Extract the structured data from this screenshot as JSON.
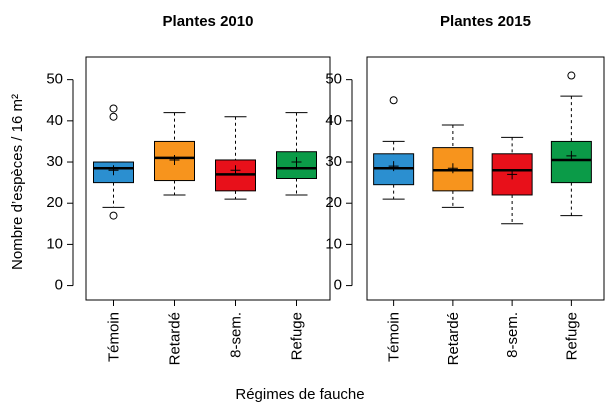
{
  "xlabel": "Régimes de fauche",
  "chart_data": [
    {
      "type": "box",
      "title": "Plantes 2010",
      "ylabel": "Nombre d’espèces / 16 m²",
      "categories": [
        "Témoin",
        "Retardé",
        "8-sem.",
        "Refuge"
      ],
      "colors": [
        "#2b8fd0",
        "#f7941d",
        "#e8101a",
        "#0b9b48"
      ],
      "ylim": [
        -3.5,
        55.5
      ],
      "yticks": [
        0,
        10,
        20,
        30,
        40,
        50
      ],
      "boxes": [
        {
          "low": 19,
          "q1": 25,
          "median": 28.5,
          "q3": 30,
          "high": 30,
          "mean": 28,
          "outliers": [
            43,
            41,
            17
          ]
        },
        {
          "low": 22,
          "q1": 25.5,
          "median": 31,
          "q3": 35,
          "high": 42,
          "mean": 30.5
        },
        {
          "low": 21,
          "q1": 23,
          "median": 27,
          "q3": 30.5,
          "high": 41,
          "mean": 28
        },
        {
          "low": 22,
          "q1": 26,
          "median": 28.5,
          "q3": 32.5,
          "high": 42,
          "mean": 30
        }
      ]
    },
    {
      "type": "box",
      "title": "Plantes 2015",
      "categories": [
        "Témoin",
        "Retardé",
        "8-sem.",
        "Refuge"
      ],
      "colors": [
        "#2b8fd0",
        "#f7941d",
        "#e8101a",
        "#0b9b48"
      ],
      "ylim": [
        -3.5,
        55.5
      ],
      "yticks": [
        0,
        10,
        20,
        30,
        40,
        50
      ],
      "boxes": [
        {
          "low": 21,
          "q1": 24.5,
          "median": 28.5,
          "q3": 32,
          "high": 35,
          "mean": 29,
          "outliers": [
            45
          ]
        },
        {
          "low": 19,
          "q1": 23,
          "median": 28,
          "q3": 33.5,
          "high": 39,
          "mean": 28.5
        },
        {
          "low": 15,
          "q1": 22,
          "median": 28,
          "q3": 32,
          "high": 36,
          "mean": 27
        },
        {
          "low": 17,
          "q1": 25,
          "median": 30.5,
          "q3": 35,
          "high": 46,
          "mean": 31.5,
          "outliers": [
            51
          ]
        }
      ]
    }
  ]
}
